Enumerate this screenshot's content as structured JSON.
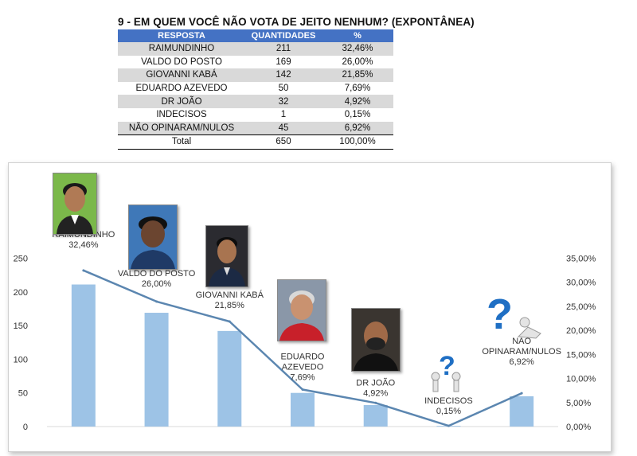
{
  "header": {
    "title": "9 - EM QUEM VOCÊ NÃO VOTA DE JEITO NENHUM? (EXPONTÂNEA)"
  },
  "table": {
    "columns": [
      "RESPOSTA",
      "QUANTIDADES",
      "%"
    ],
    "rows": [
      {
        "resposta": "RAIMUNDINHO",
        "quantidade": "211",
        "percent": "32,46%"
      },
      {
        "resposta": "VALDO DO POSTO",
        "quantidade": "169",
        "percent": "26,00%"
      },
      {
        "resposta": "GIOVANNI KABÁ",
        "quantidade": "142",
        "percent": "21,85%"
      },
      {
        "resposta": "EDUARDO AZEVEDO",
        "quantidade": "50",
        "percent": "7,69%"
      },
      {
        "resposta": "DR JOÃO",
        "quantidade": "32",
        "percent": "4,92%"
      },
      {
        "resposta": "INDECISOS",
        "quantidade": "1",
        "percent": "0,15%"
      },
      {
        "resposta": "NÃO OPINARAM/NULOS",
        "quantidade": "45",
        "percent": "6,92%"
      }
    ],
    "total": {
      "label": "Total",
      "quantidade": "650",
      "percent": "100,00%"
    }
  },
  "chart_data": {
    "type": "bar",
    "categories": [
      "RAIMUNDINHO",
      "VALDO DO POSTO",
      "GIOVANNI KABÁ",
      "EDUARDO AZEVEDO",
      "DR JOÃO",
      "INDECISOS",
      "NÃO OPINARAM/NULOS"
    ],
    "series": [
      {
        "type": "bar",
        "axis": "left",
        "values": [
          211,
          169,
          142,
          50,
          32,
          1,
          45
        ]
      },
      {
        "type": "line",
        "axis": "right",
        "values": [
          32.46,
          26.0,
          21.85,
          7.69,
          4.92,
          0.15,
          6.92
        ]
      }
    ],
    "data_labels": [
      [
        "RAIMUNDINHO",
        "32,46%"
      ],
      [
        "VALDO DO POSTO",
        "26,00%"
      ],
      [
        "GIOVANNI KABÁ",
        "21,85%"
      ],
      [
        "EDUARDO",
        "AZEVEDO",
        "7,69%"
      ],
      [
        "DR JOÃO",
        "4,92%"
      ],
      [
        "INDECISOS",
        "0,15%"
      ],
      [
        "NÃO",
        "OPINARAM/NULOS",
        "6,92%"
      ]
    ],
    "y_left": {
      "ticks": [
        "0",
        "50",
        "100",
        "150",
        "200",
        "250"
      ],
      "range": [
        0,
        250
      ]
    },
    "y_right": {
      "ticks": [
        "0,00%",
        "5,00%",
        "10,00%",
        "15,00%",
        "20,00%",
        "25,00%",
        "30,00%",
        "35,00%"
      ],
      "range": [
        0,
        35
      ]
    },
    "grid": false,
    "legend": "none",
    "colors": {
      "bar": "#9dc3e6",
      "line": "#5b86b0",
      "text": "#333333"
    }
  }
}
